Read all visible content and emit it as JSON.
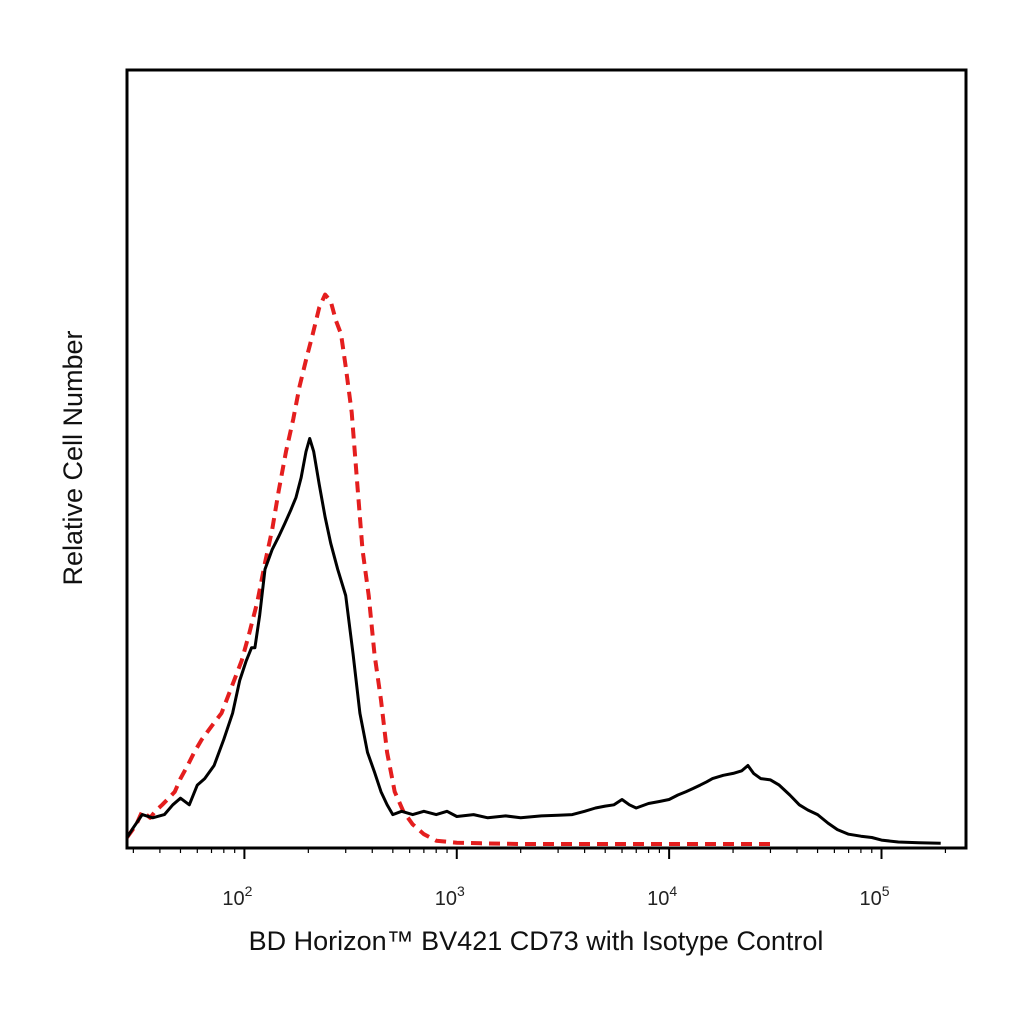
{
  "chart_data": {
    "type": "line",
    "title": "",
    "xlabel": "BD Horizon™ BV421 CD73 with Isotype Control",
    "ylabel": "Relative Cell Number",
    "x_scale": "log",
    "xlim": [
      28,
      250000
    ],
    "ylim": [
      0,
      1
    ],
    "x_ticks": [
      {
        "value": 100,
        "base": "10",
        "exp": "2"
      },
      {
        "value": 1000,
        "base": "10",
        "exp": "3"
      },
      {
        "value": 10000,
        "base": "10",
        "exp": "4"
      },
      {
        "value": 100000,
        "base": "10",
        "exp": "5"
      }
    ],
    "grid": false,
    "series": [
      {
        "color": "#e41e1e",
        "style": "dashed",
        "points": [
          [
            28,
            0.01
          ],
          [
            31,
            0.03
          ],
          [
            33,
            0.05
          ],
          [
            36,
            0.04
          ],
          [
            38,
            0.05
          ],
          [
            41,
            0.06
          ],
          [
            44,
            0.07
          ],
          [
            47,
            0.08
          ],
          [
            50,
            0.1
          ],
          [
            54,
            0.12
          ],
          [
            58,
            0.14
          ],
          [
            63,
            0.16
          ],
          [
            70,
            0.18
          ],
          [
            78,
            0.2
          ],
          [
            87,
            0.24
          ],
          [
            97,
            0.28
          ],
          [
            105,
            0.32
          ],
          [
            115,
            0.37
          ],
          [
            125,
            0.43
          ],
          [
            135,
            0.48
          ],
          [
            145,
            0.54
          ],
          [
            157,
            0.6
          ],
          [
            170,
            0.65
          ],
          [
            182,
            0.7
          ],
          [
            195,
            0.74
          ],
          [
            210,
            0.78
          ],
          [
            225,
            0.82
          ],
          [
            240,
            0.84
          ],
          [
            255,
            0.83
          ],
          [
            270,
            0.8
          ],
          [
            285,
            0.78
          ],
          [
            300,
            0.73
          ],
          [
            320,
            0.66
          ],
          [
            340,
            0.55
          ],
          [
            360,
            0.45
          ],
          [
            385,
            0.38
          ],
          [
            410,
            0.29
          ],
          [
            440,
            0.22
          ],
          [
            470,
            0.14
          ],
          [
            510,
            0.08
          ],
          [
            560,
            0.05
          ],
          [
            620,
            0.03
          ],
          [
            700,
            0.015
          ],
          [
            800,
            0.005
          ],
          [
            1000,
            0.002
          ],
          [
            1300,
            0.001
          ],
          [
            2000,
            0.0
          ],
          [
            20000,
            0.0
          ],
          [
            30000,
            0.0
          ]
        ]
      },
      {
        "color": "#000000",
        "style": "solid",
        "points": [
          [
            28,
            0.01
          ],
          [
            30,
            0.025
          ],
          [
            33,
            0.045
          ],
          [
            37,
            0.04
          ],
          [
            42,
            0.045
          ],
          [
            46,
            0.06
          ],
          [
            50,
            0.07
          ],
          [
            55,
            0.06
          ],
          [
            60,
            0.09
          ],
          [
            65,
            0.1
          ],
          [
            72,
            0.12
          ],
          [
            80,
            0.16
          ],
          [
            88,
            0.2
          ],
          [
            95,
            0.25
          ],
          [
            102,
            0.28
          ],
          [
            108,
            0.3
          ],
          [
            112,
            0.3
          ],
          [
            118,
            0.35
          ],
          [
            125,
            0.42
          ],
          [
            135,
            0.45
          ],
          [
            145,
            0.47
          ],
          [
            155,
            0.49
          ],
          [
            165,
            0.51
          ],
          [
            175,
            0.53
          ],
          [
            185,
            0.56
          ],
          [
            195,
            0.6
          ],
          [
            203,
            0.62
          ],
          [
            212,
            0.6
          ],
          [
            225,
            0.55
          ],
          [
            240,
            0.5
          ],
          [
            255,
            0.46
          ],
          [
            275,
            0.42
          ],
          [
            300,
            0.38
          ],
          [
            325,
            0.29
          ],
          [
            350,
            0.2
          ],
          [
            380,
            0.14
          ],
          [
            410,
            0.11
          ],
          [
            440,
            0.08
          ],
          [
            470,
            0.06
          ],
          [
            500,
            0.045
          ],
          [
            550,
            0.05
          ],
          [
            620,
            0.045
          ],
          [
            700,
            0.05
          ],
          [
            800,
            0.045
          ],
          [
            900,
            0.05
          ],
          [
            1000,
            0.042
          ],
          [
            1200,
            0.045
          ],
          [
            1400,
            0.04
          ],
          [
            1700,
            0.043
          ],
          [
            2000,
            0.04
          ],
          [
            2500,
            0.043
          ],
          [
            3000,
            0.044
          ],
          [
            3500,
            0.045
          ],
          [
            4000,
            0.05
          ],
          [
            4500,
            0.055
          ],
          [
            5000,
            0.058
          ],
          [
            5500,
            0.06
          ],
          [
            6000,
            0.068
          ],
          [
            6500,
            0.06
          ],
          [
            7000,
            0.055
          ],
          [
            8000,
            0.062
          ],
          [
            9000,
            0.065
          ],
          [
            10000,
            0.068
          ],
          [
            11000,
            0.075
          ],
          [
            12000,
            0.08
          ],
          [
            13000,
            0.085
          ],
          [
            14000,
            0.09
          ],
          [
            15000,
            0.095
          ],
          [
            16000,
            0.1
          ],
          [
            18000,
            0.105
          ],
          [
            20000,
            0.108
          ],
          [
            22000,
            0.112
          ],
          [
            23500,
            0.12
          ],
          [
            25000,
            0.108
          ],
          [
            27000,
            0.1
          ],
          [
            30000,
            0.098
          ],
          [
            33000,
            0.09
          ],
          [
            37000,
            0.075
          ],
          [
            41000,
            0.06
          ],
          [
            45000,
            0.052
          ],
          [
            50000,
            0.045
          ],
          [
            56000,
            0.032
          ],
          [
            62000,
            0.022
          ],
          [
            70000,
            0.015
          ],
          [
            80000,
            0.012
          ],
          [
            90000,
            0.01
          ],
          [
            100000,
            0.006
          ],
          [
            120000,
            0.003
          ],
          [
            150000,
            0.002
          ],
          [
            190000,
            0.001
          ]
        ]
      }
    ]
  }
}
